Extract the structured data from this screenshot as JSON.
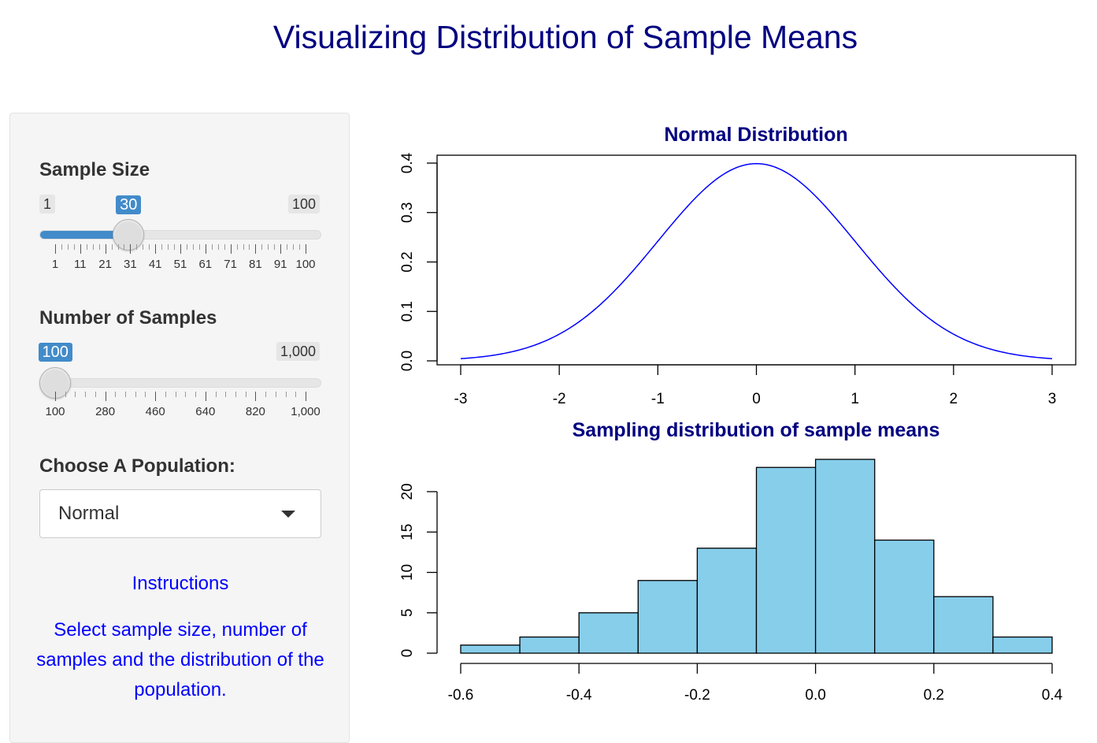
{
  "page_title": "Visualizing Distribution of Sample Means",
  "sample_size": {
    "label": "Sample Size",
    "min": 1,
    "max": 100,
    "value": 30,
    "min_label": "1",
    "max_label": "100",
    "value_label": "30",
    "grid_labels": [
      "1",
      "11",
      "21",
      "31",
      "41",
      "51",
      "61",
      "71",
      "81",
      "91",
      "100"
    ]
  },
  "num_samples": {
    "label": "Number of Samples",
    "min": 100,
    "max": 1000,
    "value": 100,
    "min_label": "100",
    "max_label": "1,000",
    "value_label": "100",
    "grid_labels": [
      "100",
      "280",
      "460",
      "640",
      "820",
      "1,000"
    ]
  },
  "population": {
    "label": "Choose A Population:",
    "selected": "Normal"
  },
  "instructions": {
    "title": "Instructions",
    "text": "Select sample size, number of samples and the distribution of the population."
  },
  "chart_data": [
    {
      "type": "line",
      "title": "Normal Distribution",
      "xlabel": "",
      "ylabel": "",
      "xlim": [
        -3,
        3
      ],
      "ylim": [
        0,
        0.4
      ],
      "x_ticks": [
        "-3",
        "-2",
        "-1",
        "0",
        "1",
        "2",
        "3"
      ],
      "y_ticks": [
        "0.0",
        "0.1",
        "0.2",
        "0.3",
        "0.4"
      ],
      "series": [
        {
          "function": "standard normal density",
          "x_range": [
            -3,
            3
          ],
          "color": "#0000ff"
        }
      ],
      "grid": false
    },
    {
      "type": "bar",
      "title": "Sampling distribution of sample means",
      "xlabel": "",
      "ylabel": "",
      "bin_edges": [
        -0.6,
        -0.5,
        -0.4,
        -0.3,
        -0.2,
        -0.1,
        0.0,
        0.1,
        0.2,
        0.3,
        0.4
      ],
      "values": [
        1,
        2,
        5,
        9,
        13,
        23,
        24,
        14,
        7,
        2
      ],
      "x_ticks": [
        "-0.6",
        "-0.4",
        "-0.2",
        "0.0",
        "0.2",
        "0.4"
      ],
      "y_ticks": [
        "0",
        "5",
        "10",
        "15",
        "20"
      ],
      "bar_color": "#87ceeb",
      "grid": false
    }
  ]
}
